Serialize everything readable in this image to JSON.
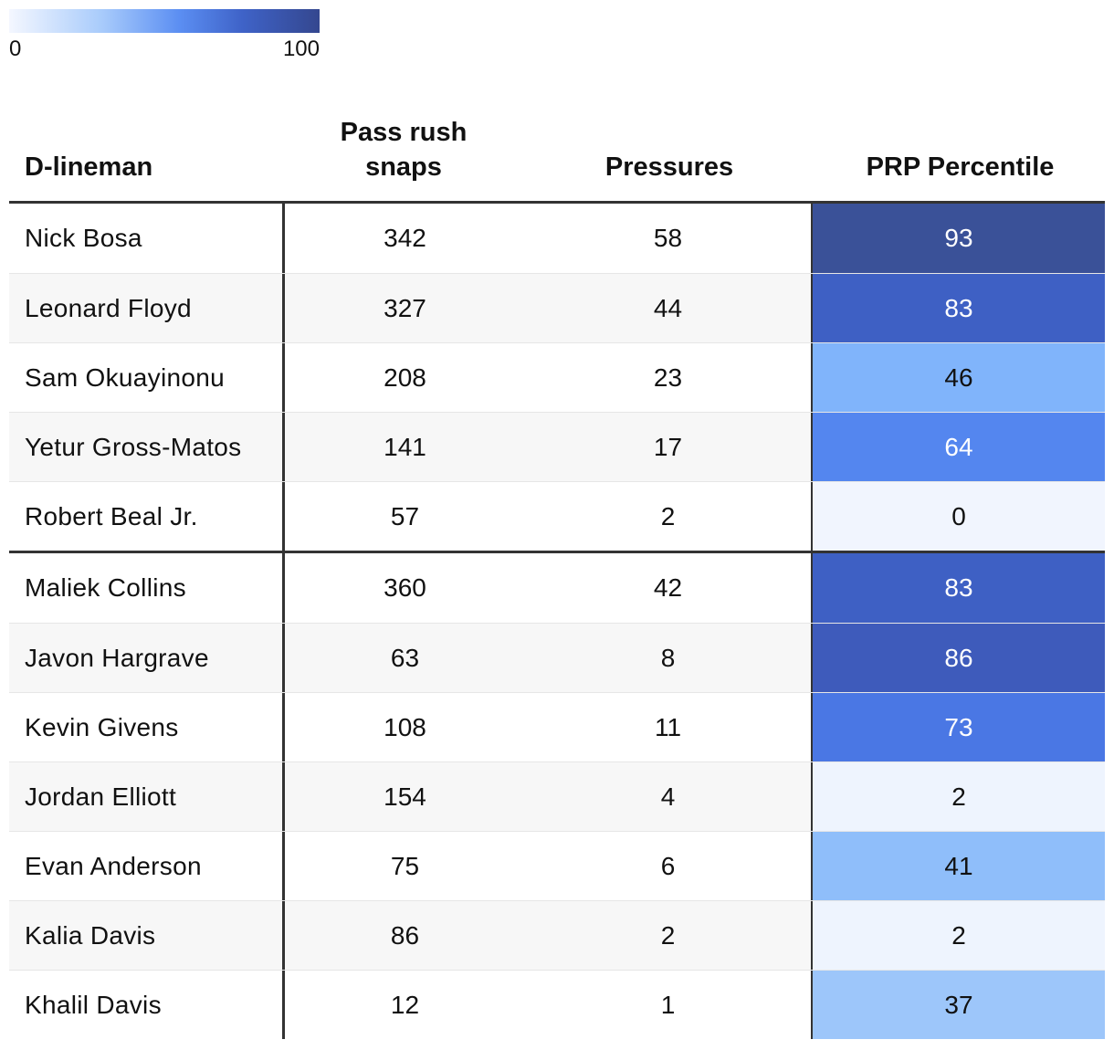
{
  "legend": {
    "min_label": "0",
    "max_label": "100",
    "colors": [
      "#f4f7ff",
      "#a8cbfb",
      "#5b8ef2",
      "#3f63c8",
      "#34478f"
    ]
  },
  "table": {
    "columns": [
      "D-lineman",
      "Pass rush snaps",
      "Pressures",
      "PRP Percentile"
    ],
    "groups": [
      [
        {
          "name": "Nick Bosa",
          "snaps": "342",
          "pressures": "58",
          "prp": "93",
          "color": "#3a5198"
        },
        {
          "name": "Leonard Floyd",
          "snaps": "327",
          "pressures": "44",
          "prp": "83",
          "color": "#3e60c4"
        },
        {
          "name": "Sam Okuayinonu",
          "snaps": "208",
          "pressures": "23",
          "prp": "46",
          "color": "#80b4fb"
        },
        {
          "name": "Yetur Gross-Matos",
          "snaps": "141",
          "pressures": "17",
          "prp": "64",
          "color": "#5486ef"
        },
        {
          "name": "Robert Beal Jr.",
          "snaps": "57",
          "pressures": "2",
          "prp": "0",
          "color": "#f1f5fe"
        }
      ],
      [
        {
          "name": "Maliek Collins",
          "snaps": "360",
          "pressures": "42",
          "prp": "83",
          "color": "#3e60c4"
        },
        {
          "name": "Javon Hargrave",
          "snaps": "63",
          "pressures": "8",
          "prp": "86",
          "color": "#3e5bbb"
        },
        {
          "name": "Kevin Givens",
          "snaps": "108",
          "pressures": "11",
          "prp": "73",
          "color": "#4a77e4"
        },
        {
          "name": "Jordan Elliott",
          "snaps": "154",
          "pressures": "4",
          "prp": "2",
          "color": "#eef4fe"
        },
        {
          "name": "Evan Anderson",
          "snaps": "75",
          "pressures": "6",
          "prp": "41",
          "color": "#8fbefa"
        },
        {
          "name": "Kalia Davis",
          "snaps": "86",
          "pressures": "2",
          "prp": "2",
          "color": "#eef4fe"
        },
        {
          "name": "Khalil Davis",
          "snaps": "12",
          "pressures": "1",
          "prp": "37",
          "color": "#9dc6fa"
        }
      ]
    ]
  },
  "chart_data": {
    "type": "table",
    "columns": [
      "D-lineman",
      "Pass rush snaps",
      "Pressures",
      "PRP Percentile"
    ],
    "rows": [
      [
        "Nick Bosa",
        342,
        58,
        93
      ],
      [
        "Leonard Floyd",
        327,
        44,
        83
      ],
      [
        "Sam Okuayinonu",
        208,
        23,
        46
      ],
      [
        "Yetur Gross-Matos",
        141,
        17,
        64
      ],
      [
        "Robert Beal Jr.",
        57,
        2,
        0
      ],
      [
        "Maliek Collins",
        360,
        42,
        83
      ],
      [
        "Javon Hargrave",
        63,
        8,
        86
      ],
      [
        "Kevin Givens",
        108,
        11,
        73
      ],
      [
        "Jordan Elliott",
        154,
        4,
        2
      ],
      [
        "Evan Anderson",
        75,
        6,
        41
      ],
      [
        "Kalia Davis",
        86,
        2,
        2
      ],
      [
        "Khalil Davis",
        12,
        1,
        37
      ]
    ],
    "color_scale": {
      "column": "PRP Percentile",
      "min": 0,
      "max": 100
    }
  }
}
